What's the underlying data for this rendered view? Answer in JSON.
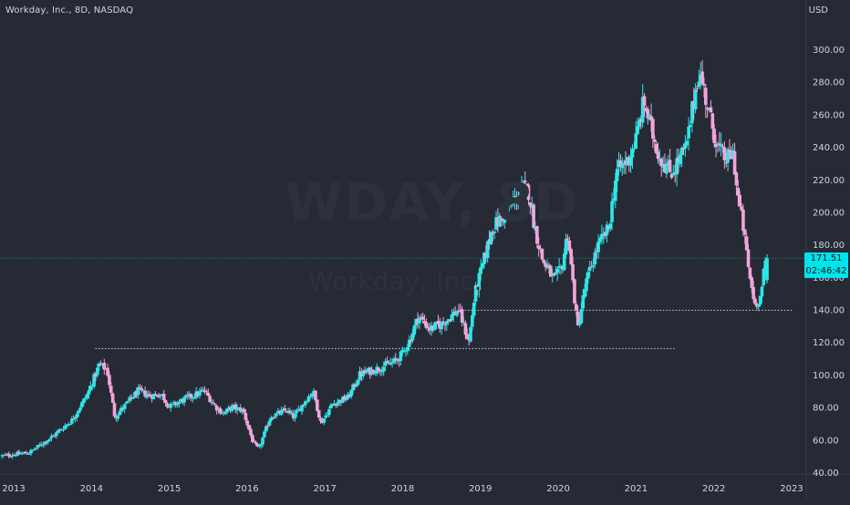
{
  "header": {
    "title": "Workday, Inc., 8D, NASDAQ",
    "currency": "USD"
  },
  "watermark": {
    "symbol": "WDAY, 8D",
    "name": "Workday, Inc."
  },
  "colors": {
    "background": "#262a35",
    "up": "#2ee6e6",
    "down": "#f0a6d8",
    "grid": "#2c303b",
    "text": "#d1d4dc",
    "last_price": "#00e5ec"
  },
  "last_price": {
    "value": "171.51",
    "countdown": "02:46:42"
  },
  "chart_data": {
    "type": "candlestick",
    "title": "Workday, Inc., 8D, NASDAQ",
    "y_axis_unit": "USD",
    "ylim": [
      40,
      308
    ],
    "xlim": [
      2012.85,
      2023.15
    ],
    "y_ticks": [
      "40.00",
      "60.00",
      "80.00",
      "100.00",
      "120.00",
      "140.00",
      "160.00",
      "180.00",
      "200.00",
      "220.00",
      "240.00",
      "260.00",
      "280.00",
      "300.00"
    ],
    "x_ticks": [
      "2013",
      "2014",
      "2015",
      "2016",
      "2017",
      "2018",
      "2019",
      "2020",
      "2021",
      "2022",
      "2023"
    ],
    "horizontal_levels": [
      {
        "price": 116,
        "from": 2014.05,
        "to": 2021.5,
        "style": "dotted"
      },
      {
        "price": 139.5,
        "from": 2018.8,
        "to": 2023.0,
        "style": "dotted"
      }
    ],
    "last_price_line": 171.51,
    "key_points": [
      [
        2012.85,
        50
      ],
      [
        2013.2,
        52
      ],
      [
        2013.5,
        62
      ],
      [
        2013.75,
        72
      ],
      [
        2013.95,
        88
      ],
      [
        2014.1,
        106
      ],
      [
        2014.2,
        103
      ],
      [
        2014.3,
        74
      ],
      [
        2014.45,
        82
      ],
      [
        2014.6,
        90
      ],
      [
        2014.75,
        87
      ],
      [
        2014.9,
        88
      ],
      [
        2015.0,
        80
      ],
      [
        2015.2,
        85
      ],
      [
        2015.45,
        90
      ],
      [
        2015.6,
        80
      ],
      [
        2015.7,
        76
      ],
      [
        2015.8,
        80
      ],
      [
        2015.95,
        78
      ],
      [
        2016.0,
        70
      ],
      [
        2016.08,
        58
      ],
      [
        2016.15,
        54
      ],
      [
        2016.3,
        74
      ],
      [
        2016.5,
        78
      ],
      [
        2016.6,
        74
      ],
      [
        2016.75,
        84
      ],
      [
        2016.85,
        90
      ],
      [
        2016.95,
        70
      ],
      [
        2017.1,
        82
      ],
      [
        2017.3,
        86
      ],
      [
        2017.45,
        100
      ],
      [
        2017.7,
        104
      ],
      [
        2017.9,
        108
      ],
      [
        2018.0,
        113
      ],
      [
        2018.1,
        122
      ],
      [
        2018.2,
        136
      ],
      [
        2018.35,
        128
      ],
      [
        2018.5,
        131
      ],
      [
        2018.6,
        135
      ],
      [
        2018.72,
        140
      ],
      [
        2018.85,
        120
      ],
      [
        2018.93,
        150
      ],
      [
        2019.0,
        162
      ],
      [
        2019.15,
        190
      ],
      [
        2019.3,
        198
      ],
      [
        2019.45,
        208
      ],
      [
        2019.55,
        215
      ],
      [
        2019.62,
        212
      ],
      [
        2019.7,
        190
      ],
      [
        2019.8,
        170
      ],
      [
        2019.95,
        158
      ],
      [
        2020.05,
        166
      ],
      [
        2020.12,
        188
      ],
      [
        2020.18,
        160
      ],
      [
        2020.25,
        128
      ],
      [
        2020.35,
        155
      ],
      [
        2020.5,
        178
      ],
      [
        2020.65,
        190
      ],
      [
        2020.75,
        225
      ],
      [
        2020.9,
        232
      ],
      [
        2021.0,
        245
      ],
      [
        2021.1,
        268
      ],
      [
        2021.2,
        250
      ],
      [
        2021.3,
        234
      ],
      [
        2021.45,
        224
      ],
      [
        2021.55,
        232
      ],
      [
        2021.65,
        240
      ],
      [
        2021.72,
        262
      ],
      [
        2021.8,
        286
      ],
      [
        2021.85,
        280
      ],
      [
        2021.95,
        258
      ],
      [
        2022.05,
        240
      ],
      [
        2022.15,
        232
      ],
      [
        2022.25,
        236
      ],
      [
        2022.3,
        212
      ],
      [
        2022.38,
        190
      ],
      [
        2022.46,
        160
      ],
      [
        2022.53,
        143
      ],
      [
        2022.6,
        148
      ],
      [
        2022.66,
        168
      ],
      [
        2022.7,
        171.51
      ]
    ]
  }
}
